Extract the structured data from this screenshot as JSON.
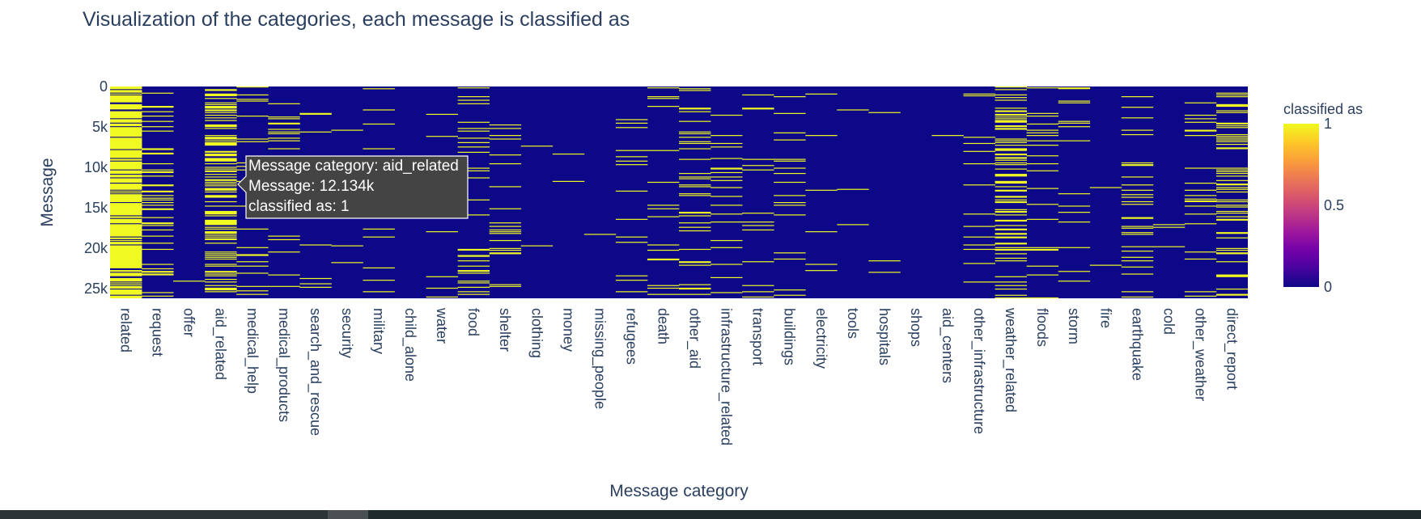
{
  "chart_data": {
    "type": "heatmap",
    "title": "Visualization of the categories, each message is classified as",
    "xlabel": "Message category",
    "ylabel": "Message",
    "categories": [
      "related",
      "request",
      "offer",
      "aid_related",
      "medical_help",
      "medical_products",
      "search_and_rescue",
      "security",
      "military",
      "child_alone",
      "water",
      "food",
      "shelter",
      "clothing",
      "money",
      "missing_people",
      "refugees",
      "death",
      "other_aid",
      "infrastructure_related",
      "transport",
      "buildings",
      "electricity",
      "tools",
      "hospitals",
      "shops",
      "aid_centers",
      "other_infrastructure",
      "weather_related",
      "floods",
      "storm",
      "fire",
      "earthquake",
      "cold",
      "other_weather",
      "direct_report"
    ],
    "y_range": [
      0,
      26200
    ],
    "y_ticks": [
      0,
      5000,
      10000,
      15000,
      20000,
      25000
    ],
    "y_tick_labels": [
      "0",
      "5k",
      "10k",
      "15k",
      "20k",
      "25k"
    ],
    "z_range": [
      0,
      1
    ],
    "colorbar": {
      "title": "classified as",
      "ticks": [
        0,
        0.5,
        1
      ],
      "tick_labels": [
        "0",
        "0.5",
        "1"
      ],
      "colors": [
        "#0d0887",
        "#46039f",
        "#7201a8",
        "#9c179e",
        "#bd3786",
        "#d8576b",
        "#ed7953",
        "#fb9f3a",
        "#fdca26",
        "#f0f921"
      ]
    },
    "density": [
      0.82,
      0.17,
      0.005,
      0.41,
      0.08,
      0.05,
      0.03,
      0.02,
      0.03,
      0.0,
      0.06,
      0.11,
      0.09,
      0.015,
      0.02,
      0.011,
      0.033,
      0.046,
      0.13,
      0.065,
      0.046,
      0.05,
      0.02,
      0.006,
      0.011,
      0.005,
      0.012,
      0.044,
      0.28,
      0.08,
      0.09,
      0.011,
      0.094,
      0.02,
      0.052,
      0.19
    ],
    "hover": {
      "line1": "Message category: aid_related",
      "line2": "Message: 12.134k",
      "line3": "classified as: 1"
    }
  }
}
